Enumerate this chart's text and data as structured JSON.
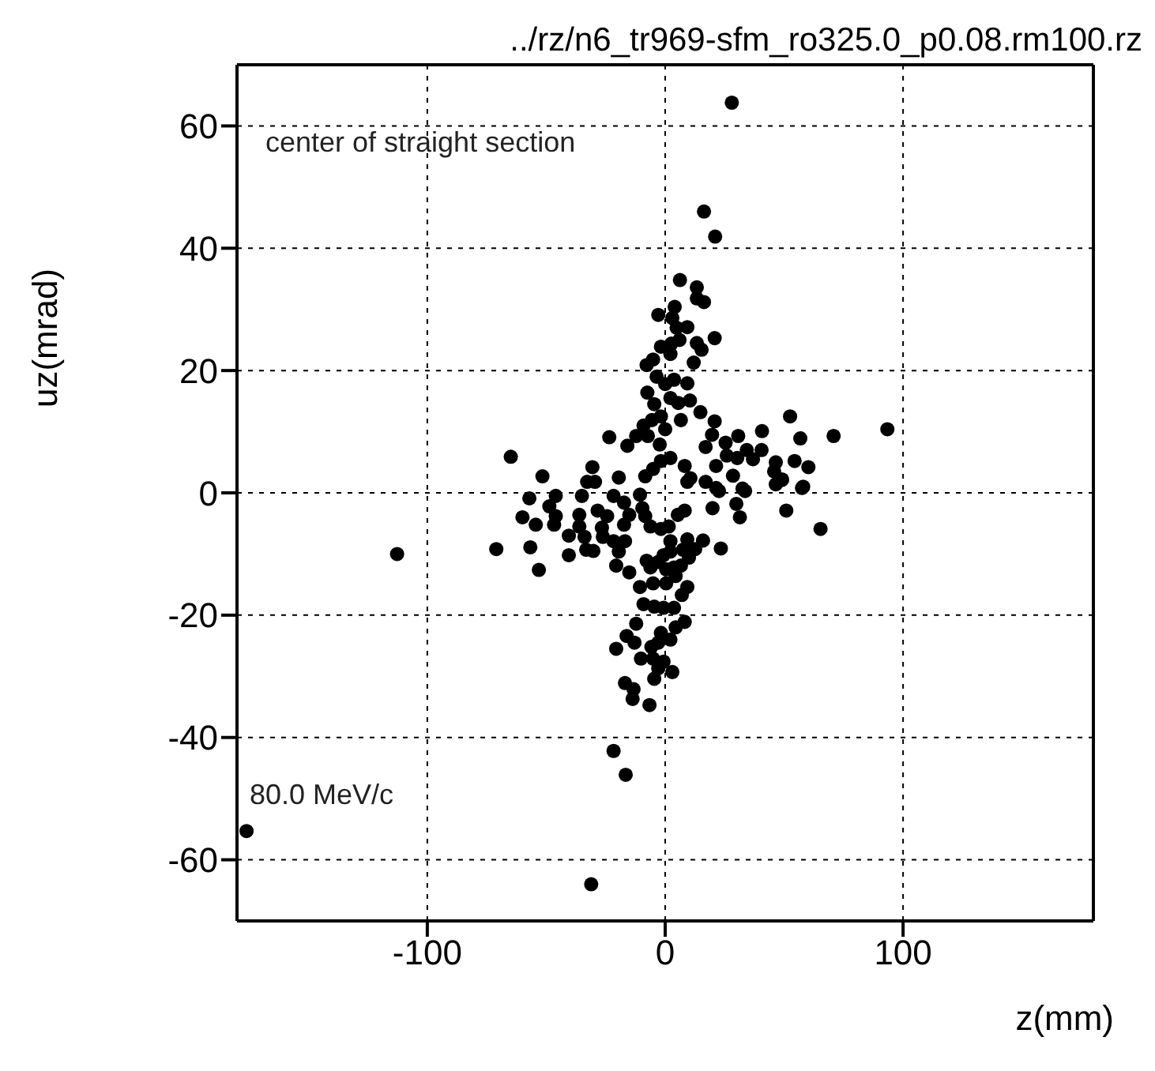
{
  "chart_data": {
    "type": "scatter",
    "title": "../rz/n6_tr969-sfm_ro325.0_p0.08.rm100.rz",
    "xlabel": "z(mm)",
    "ylabel": "uz(mrad)",
    "annotations": [
      "center of straight section",
      "80.0 MeV/c"
    ],
    "xlim": [
      -180,
      180
    ],
    "xticks": [
      -100,
      0,
      100
    ],
    "ylim": [
      -70,
      70
    ],
    "yticks": [
      -60,
      -40,
      -20,
      0,
      20,
      40,
      60
    ],
    "grid": true,
    "marker": "circle",
    "series": [
      {
        "color": "#000000",
        "x": [
          16.3,
          21,
          6.2,
          13.3,
          13.3,
          16.3,
          4,
          -2.9,
          3,
          9.3,
          4.8,
          20.8,
          13.3,
          6,
          2.6,
          -1.8,
          15.3,
          2.2,
          12,
          -5.1,
          -7.8,
          -3.6,
          0,
          3.7,
          9.3,
          -7.5,
          2.2,
          5.5,
          10.4,
          -4.6,
          14.8,
          -1.8,
          -5.6,
          6.6,
          20.8,
          52.5,
          -9.1,
          0,
          -23.5,
          -12.2,
          -7.3,
          19.7,
          30.7,
          40.7,
          56.8,
          70.8,
          -15.9,
          -2.3,
          25.4,
          17,
          34.3,
          40.5,
          -64.9,
          -30.6,
          -51.6,
          -19.5,
          -8.4,
          -5.1,
          -1.8,
          2.2,
          8.2,
          10.6,
          21.4,
          25.9,
          30.3,
          36.9,
          46.5,
          54.4,
          60.2,
          45.8,
          49.1,
          58,
          -32.8,
          -29.5,
          21.4,
          32.5,
          17,
          9.3,
          28.5,
          49.1,
          46.5,
          -57.1,
          -46,
          -35,
          -21.7,
          -10.6,
          22.6,
          33.6,
          57.5,
          -48.7,
          -28.4,
          -17.3,
          -9.6,
          8.2,
          19.9,
          29.9,
          50.9,
          -60,
          -46,
          -36.1,
          -24.4,
          -15.1,
          -8.4,
          5.3,
          31.4,
          -54.4,
          -46.7,
          -36.1,
          -26.6,
          -17.3,
          -6.2,
          -1.8,
          1.5,
          65.3,
          -40.5,
          -33.9,
          -26.2,
          -21.7,
          -16.9,
          2.2,
          9.3,
          15.9,
          -71,
          -56.7,
          -33.2,
          -30.2,
          -19.5,
          2.2,
          7.5,
          12.6,
          23.4,
          -40.5,
          -0.7,
          10,
          -7.8,
          -2.9,
          -53.1,
          -20.6,
          -6.2,
          0.4,
          3.7,
          6.6,
          -15.1,
          4.4,
          -10.6,
          -5.1,
          0.4,
          9.3,
          7,
          -9.1,
          -4.6,
          -0.7,
          3.7,
          8.2,
          -12.2,
          4.4,
          -1.8,
          -16.2,
          2.2,
          -2.9,
          -12.9,
          -5.8,
          -20.6,
          -10.2,
          -5.1,
          -0.7,
          -2.9,
          3,
          -4.6,
          -16.9,
          -13.3,
          -13.7,
          -6.6,
          -21.7,
          -16.6,
          -31.1,
          -176,
          28,
          93.4,
          -112.7
        ],
        "values": [
          46,
          41.9,
          34.8,
          33.6,
          31.8,
          31.2,
          30.4,
          29.1,
          28.6,
          27.1,
          27,
          25.3,
          24.5,
          25,
          24.4,
          23.9,
          23.4,
          22.7,
          21.3,
          21.8,
          20.9,
          19,
          17.8,
          18.5,
          17.9,
          16.4,
          15.5,
          14.7,
          15.1,
          14.5,
          13.2,
          12.5,
          11.9,
          11.9,
          11.7,
          12.5,
          11,
          10.4,
          9.1,
          9.3,
          9.3,
          9.5,
          9.3,
          10.1,
          8.9,
          9.3,
          7.7,
          7.9,
          8.2,
          7.5,
          7,
          7,
          5.9,
          4.2,
          2.7,
          2.5,
          2.7,
          3.9,
          5.2,
          5.7,
          4.4,
          2.4,
          4.4,
          6.1,
          5.7,
          5.5,
          5,
          5.2,
          4.2,
          3.5,
          2.2,
          1,
          1.8,
          1.8,
          0.8,
          0.7,
          1.8,
          1.8,
          2.8,
          2.1,
          1.4,
          -0.9,
          -0.5,
          -0.5,
          -0.5,
          -0.3,
          0.3,
          0.3,
          0.8,
          -2.2,
          -2.9,
          -1.6,
          -2.5,
          -2.9,
          -2.5,
          -1.8,
          -2.9,
          -4,
          -3.8,
          -3.6,
          -3.8,
          -3.6,
          -3.8,
          -3.6,
          -4,
          -5.2,
          -5.2,
          -5.5,
          -5.7,
          -5.2,
          -5.5,
          -5.9,
          -5.5,
          -5.9,
          -7,
          -7.2,
          -7.2,
          -7.9,
          -7.9,
          -7.9,
          -7.6,
          -7.8,
          -9.2,
          -8.9,
          -9.3,
          -9.5,
          -9.6,
          -9.6,
          -9.3,
          -9.2,
          -9.1,
          -10.2,
          -10.2,
          -10.6,
          -11.1,
          -11.3,
          -12.6,
          -11.9,
          -12.2,
          -12.5,
          -12.2,
          -11.9,
          -13,
          -13.6,
          -15.4,
          -14.8,
          -14.8,
          -15.4,
          -16.7,
          -18.2,
          -18.6,
          -18.8,
          -18.8,
          -21.1,
          -21.4,
          -22,
          -22.9,
          -23.4,
          -24,
          -24.5,
          -24.5,
          -25.2,
          -25.5,
          -27.1,
          -27.1,
          -27.6,
          -28.7,
          -29.3,
          -30.4,
          -31.1,
          -32.1,
          -33.7,
          -34.7,
          -42.2,
          -46.1,
          -64,
          -55.3,
          63.8,
          10.4,
          -10
        ]
      }
    ]
  }
}
